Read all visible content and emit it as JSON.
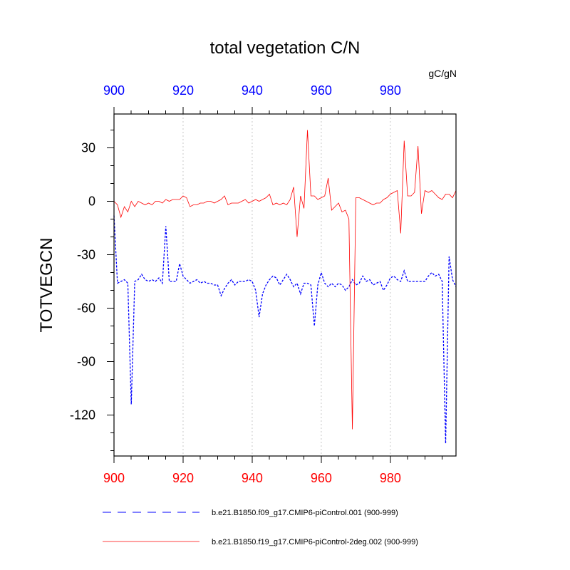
{
  "chart_data": {
    "type": "line",
    "title": "total vegetation C/N",
    "ylabel": "TOTVEGCN",
    "units": "gC/gN",
    "xlim": [
      900,
      999
    ],
    "ylim": [
      -143,
      49
    ],
    "xticks": [
      900,
      920,
      940,
      960,
      980
    ],
    "xtick_labels": [
      "900",
      "920",
      "940",
      "960",
      "980"
    ],
    "yticks": [
      30,
      0,
      -30,
      -60,
      -90,
      -120
    ],
    "ytick_labels": [
      "30",
      "0",
      "-30",
      "-60",
      "-90",
      "-120"
    ],
    "vertical_grid": true,
    "bottom_axis_color": "#ff0000",
    "top_axis_color": "#0000ff",
    "series": [
      {
        "name": "b.e21.B1850.f09_g17.CMIP6-piControl.001 (900-999)",
        "color": "#0000ff",
        "dash": "dashed",
        "x": [
          900,
          901,
          902,
          903,
          904,
          905,
          906,
          907,
          908,
          909,
          910,
          911,
          912,
          913,
          914,
          915,
          916,
          917,
          918,
          919,
          920,
          921,
          922,
          923,
          924,
          925,
          926,
          927,
          928,
          929,
          930,
          931,
          932,
          933,
          934,
          935,
          936,
          937,
          938,
          939,
          940,
          941,
          942,
          943,
          944,
          945,
          946,
          947,
          948,
          949,
          950,
          951,
          952,
          953,
          954,
          955,
          956,
          957,
          958,
          959,
          960,
          961,
          962,
          963,
          964,
          965,
          966,
          967,
          968,
          969,
          970,
          971,
          972,
          973,
          974,
          975,
          976,
          977,
          978,
          979,
          980,
          981,
          982,
          983,
          984,
          985,
          986,
          987,
          988,
          989,
          990,
          991,
          992,
          993,
          994,
          995,
          996,
          997,
          998,
          999
        ],
        "y": [
          -8,
          -46,
          -45,
          -44,
          -46,
          -114,
          -45,
          -44,
          -41,
          -44,
          -45,
          -44,
          -45,
          -43,
          -46,
          -14,
          -45,
          -45,
          -45,
          -35,
          -42,
          -44,
          -46,
          -45,
          -44,
          -46,
          -45,
          -46,
          -46,
          -47,
          -47,
          -53,
          -49,
          -46,
          -44,
          -47,
          -45,
          -45,
          -45,
          -44,
          -45,
          -50,
          -65,
          -52,
          -47,
          -44,
          -42,
          -43,
          -47,
          -44,
          -41,
          -44,
          -48,
          -46,
          -52,
          -46,
          -46,
          -47,
          -70,
          -47,
          -40,
          -46,
          -48,
          -46,
          -48,
          -46,
          -47,
          -50,
          -48,
          -44,
          -47,
          -46,
          -42,
          -45,
          -44,
          -47,
          -46,
          -45,
          -50,
          -47,
          -43,
          -42,
          -44,
          -45,
          -39,
          -45,
          -45,
          -45,
          -45,
          -45,
          -45,
          -42,
          -40,
          -42,
          -41,
          -45,
          -136,
          -31,
          -44,
          -48
        ]
      },
      {
        "name": "b.e21.B1850.f19_g17.CMIP6-piControl-2deg.002 (900-999)",
        "color": "#ff0000",
        "dash": "solid",
        "x": [
          900,
          901,
          902,
          903,
          904,
          905,
          906,
          907,
          908,
          909,
          910,
          911,
          912,
          913,
          914,
          915,
          916,
          917,
          918,
          919,
          920,
          921,
          922,
          923,
          924,
          925,
          926,
          927,
          928,
          929,
          930,
          931,
          932,
          933,
          934,
          935,
          936,
          937,
          938,
          939,
          940,
          941,
          942,
          943,
          944,
          945,
          946,
          947,
          948,
          949,
          950,
          951,
          952,
          953,
          954,
          955,
          956,
          957,
          958,
          959,
          960,
          961,
          962,
          963,
          964,
          965,
          966,
          967,
          968,
          969,
          970,
          971,
          972,
          973,
          974,
          975,
          976,
          977,
          978,
          979,
          980,
          981,
          982,
          983,
          984,
          985,
          986,
          987,
          988,
          989,
          990,
          991,
          992,
          993,
          994,
          995,
          996,
          997,
          998,
          999
        ],
        "y": [
          0,
          -2,
          -9,
          -3,
          -6,
          0,
          -3,
          0,
          -1,
          -2,
          -1,
          -2,
          0,
          0,
          -1,
          1,
          0,
          1,
          1,
          1,
          3,
          2,
          -3,
          -2,
          -2,
          -1,
          -1,
          0,
          0,
          -1,
          0,
          1,
          3,
          -2,
          -1,
          -1,
          -1,
          0,
          1,
          -1,
          0,
          1,
          0,
          1,
          2,
          4,
          -2,
          -1,
          -2,
          -1,
          -2,
          1,
          8,
          -20,
          3,
          -4,
          40,
          3,
          3,
          1,
          2,
          3,
          13,
          -5,
          -3,
          -1,
          -6,
          -5,
          -10,
          -128,
          2,
          2,
          1,
          0,
          -1,
          -2,
          -1,
          -1,
          1,
          2,
          4,
          5,
          6,
          -18,
          34,
          3,
          3,
          5,
          31,
          -7,
          6,
          5,
          6,
          4,
          2,
          1,
          4,
          4,
          2,
          6
        ]
      }
    ]
  }
}
